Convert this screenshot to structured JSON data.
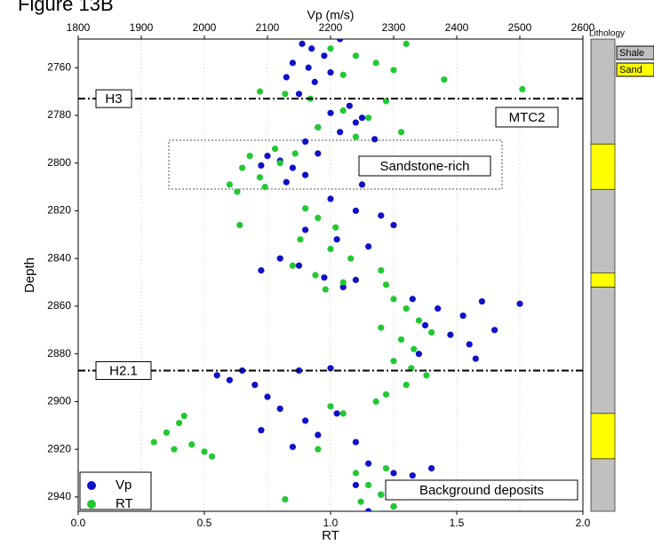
{
  "chart_data": {
    "type": "scatter",
    "title": "Figure 13B",
    "x2label": "Vp (m/s)",
    "xlabel": "RT",
    "ylabel": "Depth",
    "xlim": [
      0,
      2
    ],
    "xticks": [
      {
        "value": 0,
        "label": "0.0"
      },
      0.5,
      {
        "value": 1,
        "label": "1.0"
      },
      1.5,
      {
        "value": 2,
        "label": "2.0"
      }
    ],
    "x2lim": [
      1800,
      2600
    ],
    "x2ticks": [
      1800,
      1900,
      2000,
      2100,
      2200,
      2300,
      2400,
      2500,
      2600
    ],
    "ylim": [
      2748,
      2946
    ],
    "yticks": [
      2760,
      2780,
      2800,
      2820,
      2840,
      2860,
      2880,
      2900,
      2920,
      2940
    ],
    "y_inverted": true,
    "grid": true,
    "legend": "lower-left",
    "series": [
      {
        "name": "Vp",
        "color": "#1010c8",
        "axis": "x2",
        "x": [
          2155,
          2170,
          2190,
          2140,
          2165,
          2200,
          2130,
          2175,
          2215,
          2150,
          2230,
          2200,
          2250,
          2180,
          2215,
          2270,
          2160,
          2240,
          2100,
          2120,
          2140,
          2160,
          2090,
          2180,
          2130,
          2250,
          2200,
          2240,
          2280,
          2300,
          2160,
          2210,
          2260,
          2120,
          2150,
          2090,
          2190,
          2240,
          2220,
          2330,
          2370,
          2410,
          2440,
          2350,
          2390,
          2420,
          2460,
          2500,
          2430,
          2340,
          2060,
          2020,
          2080,
          2100,
          2040,
          2150,
          2200,
          2120,
          2160,
          2210,
          2090,
          2180,
          2140,
          2240,
          2260,
          2300,
          2240,
          2280,
          2330,
          2300,
          2260,
          2360
        ],
        "values": [
          2750,
          2752,
          2755,
          2758,
          2760,
          2762,
          2764,
          2766,
          2748,
          2771,
          2776,
          2779,
          2781,
          2785,
          2787,
          2790,
          2791,
          2783,
          2797,
          2799,
          2802,
          2805,
          2801,
          2796,
          2808,
          2809,
          2815,
          2820,
          2822,
          2826,
          2828,
          2832,
          2835,
          2840,
          2843,
          2845,
          2848,
          2849,
          2852,
          2857,
          2861,
          2864,
          2858,
          2868,
          2872,
          2876,
          2870,
          2859,
          2882,
          2880,
          2887,
          2889,
          2893,
          2898,
          2891,
          2887,
          2886,
          2903,
          2908,
          2905,
          2912,
          2914,
          2919,
          2917,
          2926,
          2930,
          2935,
          2939,
          2931,
          2944,
          2946,
          2928
        ]
      },
      {
        "name": "RT",
        "color": "#22c832",
        "x": [
          1.0,
          1.1,
          1.18,
          1.25,
          1.05,
          1.3,
          1.45,
          0.72,
          0.82,
          1.76,
          0.92,
          1.05,
          1.15,
          1.22,
          0.95,
          1.1,
          1.28,
          0.6,
          0.65,
          0.68,
          0.72,
          0.78,
          0.8,
          0.63,
          0.74,
          0.86,
          0.64,
          0.9,
          0.95,
          1.02,
          0.88,
          1.0,
          1.08,
          0.85,
          0.94,
          1.05,
          0.98,
          1.2,
          1.22,
          1.25,
          1.3,
          1.35,
          1.2,
          1.28,
          1.33,
          1.25,
          1.38,
          1.3,
          1.22,
          1.18,
          1.32,
          1.4,
          0.3,
          0.35,
          0.4,
          0.45,
          0.5,
          0.42,
          0.53,
          0.38,
          1.0,
          0.95,
          1.05,
          1.1,
          1.15,
          1.2,
          1.25,
          1.18,
          1.12,
          1.22,
          0.82
        ],
        "values": [
          2752,
          2755,
          2758,
          2761,
          2763,
          2750,
          2765,
          2770,
          2771,
          2769,
          2773,
          2778,
          2781,
          2774,
          2785,
          2789,
          2787,
          2809,
          2802,
          2797,
          2806,
          2794,
          2800,
          2812,
          2810,
          2796,
          2826,
          2819,
          2823,
          2827,
          2832,
          2836,
          2840,
          2843,
          2847,
          2850,
          2853,
          2845,
          2851,
          2857,
          2861,
          2866,
          2869,
          2874,
          2878,
          2883,
          2889,
          2893,
          2897,
          2900,
          2886,
          2871,
          2917,
          2913,
          2909,
          2918,
          2921,
          2906,
          2923,
          2920,
          2902,
          2920,
          2905,
          2930,
          2935,
          2939,
          2944,
          2947,
          2942,
          2928,
          2941
        ]
      }
    ],
    "horizons": [
      {
        "label": "H3",
        "depth": 2773
      },
      {
        "label": "H2.1",
        "depth": 2887
      }
    ],
    "annotations": [
      "MTC2",
      "Sandstone-rich",
      "Background deposits"
    ],
    "lithology": {
      "title": "Lithology",
      "types": [
        {
          "name": "Shale",
          "color": "#c0c0c0"
        },
        {
          "name": "Sand",
          "color": "#ffff00"
        }
      ],
      "intervals": [
        {
          "top": 2748,
          "bottom": 2792,
          "type": 0
        },
        {
          "top": 2792,
          "bottom": 2811,
          "type": 1
        },
        {
          "top": 2811,
          "bottom": 2846,
          "type": 0
        },
        {
          "top": 2846,
          "bottom": 2852,
          "type": 1
        },
        {
          "top": 2852,
          "bottom": 2905,
          "type": 0
        },
        {
          "top": 2905,
          "bottom": 2924,
          "type": 1
        },
        {
          "top": 2924,
          "bottom": 2946,
          "type": 0
        }
      ]
    }
  }
}
